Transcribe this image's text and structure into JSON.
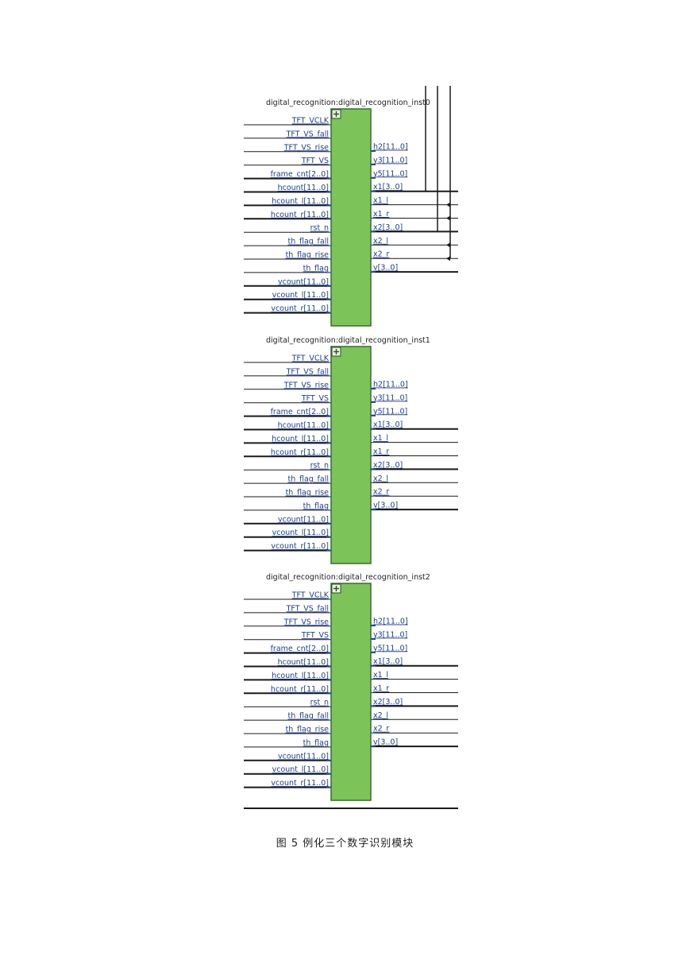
{
  "modules": [
    {
      "title": "digital_recognition:digital_recognition_inst0",
      "inputs": [
        "TFT_VCLK",
        "TFT_VS_fall",
        "TFT_VS_rise",
        "TFT_VS",
        "frame_cnt[2..0]",
        "hcount[11..0]",
        "hcount_l[11..0]",
        "hcount_r[11..0]",
        "rst_n",
        "th_flag_fall",
        "th_flag_rise",
        "th_flag",
        "vcount[11..0]",
        "vcount_l[11..0]",
        "vcount_r[11..0]"
      ],
      "outputs": [
        "h2[11..0]",
        "y3[11..0]",
        "y5[11..0]",
        "x1[3..0]",
        "x1_l",
        "x1_r",
        "x2[3..0]",
        "x2_l",
        "x2_r",
        "v[3..0]"
      ]
    },
    {
      "title": "digital_recognition:digital_recognition_inst1",
      "inputs": [
        "TFT_VCLK",
        "TFT_VS_fall",
        "TFT_VS_rise",
        "TFT_VS",
        "frame_cnt[2..0]",
        "hcount[11..0]",
        "hcount_l[11..0]",
        "hcount_r[11..0]",
        "rst_n",
        "th_flag_fall",
        "th_flag_rise",
        "th_flag",
        "vcount[11..0]",
        "vcount_l[11..0]",
        "vcount_r[11..0]"
      ],
      "outputs": [
        "h2[11..0]",
        "y3[11..0]",
        "y5[11..0]",
        "x1[3..0]",
        "x1_l",
        "x1_r",
        "x2[3..0]",
        "x2_l",
        "x2_r",
        "v[3..0]"
      ]
    },
    {
      "title": "digital_recognition:digital_recognition_inst2",
      "inputs": [
        "TFT_VCLK",
        "TFT_VS_fall",
        "TFT_VS_rise",
        "TFT_VS",
        "frame_cnt[2..0]",
        "hcount[11..0]",
        "hcount_l[11..0]",
        "hcount_r[11..0]",
        "rst_n",
        "th_flag_fall",
        "th_flag_rise",
        "th_flag",
        "vcount[11..0]",
        "vcount_l[11..0]",
        "vcount_r[11..0]"
      ],
      "outputs": [
        "h2[11..0]",
        "y3[11..0]",
        "y5[11..0]",
        "x1[3..0]",
        "x1_l",
        "x1_r",
        "x2[3..0]",
        "x2_l",
        "x2_r",
        "v[3..0]"
      ]
    }
  ],
  "caption": "图 5 例化三个数字识别模块",
  "colors": {
    "block_fill": "#7cc35a",
    "block_stroke": "#3a6f2a",
    "pin": "#1f4e8c",
    "wire": "#1a1a1a",
    "label": "#1f3f8a"
  }
}
